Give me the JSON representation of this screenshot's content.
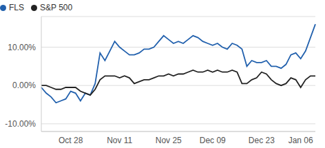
{
  "chart_data": {
    "type": "line",
    "categories": [
      null,
      null,
      null,
      null,
      null,
      null,
      "Oct 28",
      null,
      null,
      null,
      null,
      null,
      null,
      null,
      null,
      null,
      "Nov 11",
      null,
      null,
      null,
      null,
      null,
      null,
      null,
      null,
      null,
      "Nov 25",
      null,
      null,
      null,
      null,
      null,
      null,
      null,
      null,
      "Dec 09",
      null,
      null,
      null,
      null,
      null,
      null,
      null,
      null,
      null,
      "Dec 23",
      null,
      null,
      null,
      null,
      null,
      null,
      null,
      "Jan 06",
      null,
      null,
      null
    ],
    "series": [
      {
        "name": "FLS",
        "color": "#2160ad",
        "values": [
          -0.5,
          -2,
          -3,
          -4.5,
          -4,
          -3.5,
          -1.5,
          -2,
          -4,
          -2,
          -2.5,
          0.5,
          8.5,
          6.5,
          9,
          11.5,
          10,
          9,
          8,
          8,
          8.5,
          9.5,
          9.5,
          10,
          11.5,
          13,
          12,
          11,
          11.5,
          11,
          12,
          13,
          12.5,
          11.5,
          11,
          10.5,
          11,
          10,
          9.5,
          11,
          10.5,
          9.5,
          5,
          6.5,
          6,
          6,
          6.5,
          5,
          5,
          4.5,
          5.5,
          8,
          8.5,
          7,
          9,
          12.5,
          16
        ]
      },
      {
        "name": "S&P 500",
        "color": "#222222",
        "values": [
          0,
          0,
          -0.5,
          -1,
          -1,
          -0.5,
          -0.5,
          -0.5,
          -1.5,
          -2,
          -2.5,
          -1,
          1.5,
          2.5,
          2.5,
          2.5,
          2,
          2.5,
          2,
          0.5,
          1,
          1.5,
          1.5,
          2,
          2.5,
          2.5,
          3,
          2.5,
          3,
          3,
          3.5,
          4,
          3.5,
          3.5,
          4,
          3.5,
          4,
          3.5,
          3.5,
          4,
          3.5,
          0.5,
          0.5,
          1.5,
          2,
          3.5,
          3,
          1.5,
          0.5,
          0,
          0.5,
          2,
          1.5,
          -0.5,
          1.5,
          2.5,
          2.5
        ]
      }
    ],
    "ylim": [
      -12,
      18
    ],
    "yticks": [
      {
        "value": -10,
        "label": "-10.00%"
      },
      {
        "value": 0,
        "label": "0.00%"
      },
      {
        "value": 10,
        "label": "10.00%"
      }
    ],
    "grid": true,
    "legend": "top-left"
  }
}
